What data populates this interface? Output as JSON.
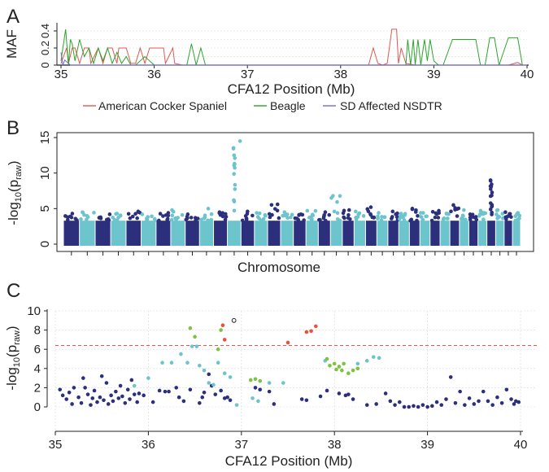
{
  "figure": {
    "panel_a": "A",
    "panel_b": "B",
    "panel_c": "C"
  },
  "colors": {
    "american_cocker": "#e0574f",
    "beagle": "#2aa52a",
    "sd_nsdtr": "#6b6bd8",
    "dark_blue": "#2b2f7c",
    "teal": "#6cc4cc",
    "green_pt": "#7ec241",
    "red_pt": "#e8513f",
    "threshold": "#e0574f",
    "grid": "#d7d7d7"
  },
  "chart_data": [
    {
      "id": "A",
      "type": "line",
      "title": "",
      "xlabel": "CFA12 Position (Mb)",
      "ylabel": "MAF",
      "xlim": [
        35,
        40
      ],
      "ylim": [
        0,
        0.4
      ],
      "xticks": [
        "35",
        "36",
        "37",
        "38",
        "39",
        "40"
      ],
      "yticks": [
        "0",
        "0.2",
        "0.4"
      ],
      "legend": [
        "American Cocker Spaniel",
        "Beagle",
        "SD Affected NSDTR"
      ],
      "series": [
        {
          "name": "American Cocker Spaniel",
          "x": [
            35.0,
            35.06,
            35.08,
            35.12,
            35.15,
            35.2,
            35.25,
            35.3,
            35.32,
            35.4,
            35.45,
            35.5,
            35.55,
            35.6,
            35.62,
            35.7,
            35.75,
            35.8,
            35.85,
            35.9,
            35.95,
            36.0,
            36.05,
            36.1,
            36.12,
            36.2,
            36.22,
            36.3,
            36.4,
            36.6,
            37.0,
            37.5,
            38.0,
            38.3,
            38.35,
            38.4,
            38.45,
            38.5,
            38.55,
            38.6,
            38.62,
            38.65,
            38.7,
            38.8,
            39.0,
            39.5,
            39.8,
            39.9,
            39.95,
            40.0
          ],
          "y": [
            0.02,
            0.2,
            0.02,
            0.2,
            0.2,
            0.02,
            0.2,
            0.2,
            0.02,
            0.2,
            0.02,
            0.2,
            0.2,
            0.02,
            0.2,
            0.2,
            0.02,
            0.02,
            0.2,
            0.02,
            0.2,
            0.2,
            0.2,
            0.2,
            0.02,
            0.2,
            0.02,
            0.0,
            0.0,
            0.0,
            0.0,
            0.0,
            0.0,
            0.0,
            0.2,
            0.02,
            0.0,
            0.02,
            0.42,
            0.42,
            0.02,
            0.2,
            0.02,
            0.0,
            0.0,
            0.0,
            0.0,
            0.03,
            0.0,
            0.0
          ]
        },
        {
          "name": "Beagle",
          "x": [
            35.0,
            35.05,
            35.08,
            35.1,
            35.12,
            35.15,
            35.2,
            35.25,
            35.3,
            35.35,
            35.4,
            35.45,
            35.5,
            35.55,
            35.6,
            35.65,
            35.7,
            35.75,
            35.8,
            35.9,
            36.0,
            36.05,
            36.1,
            36.2,
            36.3,
            36.35,
            36.4,
            36.45,
            36.5,
            36.55,
            36.6,
            37.0,
            37.5,
            38.0,
            38.5,
            38.7,
            38.72,
            38.75,
            38.78,
            38.8,
            38.83,
            38.86,
            38.9,
            38.93,
            38.96,
            39.0,
            39.05,
            39.1,
            39.2,
            39.3,
            39.4,
            39.45,
            39.5,
            39.55,
            39.6,
            39.65,
            39.7,
            39.8,
            39.85,
            39.9,
            39.95,
            40.0
          ],
          "y": [
            0.05,
            0.42,
            0.0,
            0.3,
            0.25,
            0.05,
            0.3,
            0.1,
            0.2,
            0.02,
            0.2,
            0.05,
            0.2,
            0.02,
            0.15,
            0.02,
            0.1,
            0.0,
            0.0,
            0.1,
            0.0,
            0.0,
            0.0,
            0.0,
            0.0,
            0.0,
            0.25,
            0.0,
            0.2,
            0.0,
            0.0,
            0.0,
            0.0,
            0.0,
            0.0,
            0.0,
            0.3,
            0.0,
            0.3,
            0.0,
            0.3,
            0.0,
            0.3,
            0.05,
            0.3,
            0.05,
            0.0,
            0.0,
            0.3,
            0.3,
            0.3,
            0.3,
            0.0,
            0.0,
            0.32,
            0.32,
            0.0,
            0.32,
            0.32,
            0.32,
            0.0,
            0.0
          ]
        },
        {
          "name": "SD Affected NSDTR",
          "x": [
            35.0,
            35.02,
            35.04,
            35.1,
            35.5,
            36.0,
            36.5,
            37.0,
            37.5,
            38.0,
            38.5,
            39.0,
            39.5,
            40.0
          ],
          "y": [
            0.15,
            0.0,
            0.06,
            0.0,
            0.0,
            0.0,
            0.0,
            0.0,
            0.0,
            0.0,
            0.0,
            0.0,
            0.0,
            0.0
          ]
        }
      ]
    },
    {
      "id": "B",
      "type": "scatter",
      "title": "",
      "xlabel": "Chromosome",
      "ylabel": "-log10(praw)",
      "ylim": [
        0,
        15
      ],
      "yticks": [
        "0",
        "5",
        "10",
        "15"
      ],
      "chromosomes": 38,
      "chromosome_max": [
        4.3,
        4.5,
        4.2,
        4.3,
        4.6,
        4.2,
        4.4,
        4.8,
        4.2,
        5.0,
        4.5,
        14.5,
        4.6,
        4.4,
        5.6,
        4.5,
        4.2,
        4.7,
        4.5,
        6.8,
        4.8,
        4.6,
        5.2,
        4.4,
        4.6,
        4.3,
        5.0,
        4.4,
        4.7,
        4.3,
        5.5,
        4.8,
        4.2,
        4.7,
        9.0,
        4.8,
        4.5,
        4.4
      ],
      "series": [
        {
          "name": "odd chromosomes",
          "color": "dark_blue"
        },
        {
          "name": "even chromosomes",
          "color": "teal"
        }
      ]
    },
    {
      "id": "C",
      "type": "scatter",
      "title": "",
      "xlabel": "CFA12 Position (Mb)",
      "ylabel": "-log10(praw)",
      "xlim": [
        35,
        40
      ],
      "ylim": [
        0,
        10
      ],
      "xticks": [
        "35",
        "36",
        "37",
        "38",
        "39",
        "40"
      ],
      "yticks": [
        "0",
        "2",
        "4",
        "6",
        "8",
        "10"
      ],
      "threshold": 6.4,
      "series": [
        {
          "name": "dark",
          "points": [
            [
              35.05,
              1.8
            ],
            [
              35.08,
              1.2
            ],
            [
              35.12,
              0.8
            ],
            [
              35.15,
              1.5
            ],
            [
              35.18,
              0.3
            ],
            [
              35.2,
              2.0
            ],
            [
              35.25,
              1.0
            ],
            [
              35.28,
              0.4
            ],
            [
              35.3,
              3.0
            ],
            [
              35.32,
              2.0
            ],
            [
              35.35,
              1.3
            ],
            [
              35.38,
              0.2
            ],
            [
              35.4,
              0.9
            ],
            [
              35.42,
              1.7
            ],
            [
              35.45,
              0.5
            ],
            [
              35.48,
              1.0
            ],
            [
              35.5,
              3.2
            ],
            [
              35.52,
              0.7
            ],
            [
              35.55,
              2.5
            ],
            [
              35.57,
              0.3
            ],
            [
              35.6,
              1.2
            ],
            [
              35.62,
              0.6
            ],
            [
              35.65,
              1.6
            ],
            [
              35.68,
              0.9
            ],
            [
              35.7,
              2.2
            ],
            [
              35.72,
              1.1
            ],
            [
              35.75,
              0.4
            ],
            [
              35.78,
              1.8
            ],
            [
              35.8,
              0.8
            ],
            [
              35.82,
              2.8
            ],
            [
              35.85,
              1.3
            ],
            [
              35.88,
              0.5
            ],
            [
              35.9,
              1.4
            ],
            [
              35.95,
              1.2
            ],
            [
              36.05,
              0.5
            ],
            [
              36.12,
              1.7
            ],
            [
              36.18,
              1.6
            ],
            [
              36.22,
              1.6
            ],
            [
              36.3,
              2.0
            ],
            [
              36.33,
              1.0
            ],
            [
              36.38,
              0.6
            ],
            [
              36.45,
              1.8
            ],
            [
              36.55,
              0.4
            ],
            [
              36.58,
              1.0
            ],
            [
              36.6,
              1.5
            ],
            [
              36.65,
              3.4
            ],
            [
              36.68,
              2.2
            ],
            [
              36.72,
              1.3
            ],
            [
              36.78,
              1.7
            ],
            [
              36.82,
              0.9
            ],
            [
              36.85,
              1.0
            ],
            [
              36.88,
              0.7
            ],
            [
              37.15,
              2.0
            ],
            [
              37.2,
              1.8
            ],
            [
              37.3,
              1.6
            ],
            [
              37.35,
              0.3
            ],
            [
              37.65,
              0.8
            ],
            [
              37.7,
              0.7
            ],
            [
              37.85,
              1.1
            ],
            [
              37.92,
              1.7
            ],
            [
              38.05,
              1.4
            ],
            [
              38.12,
              1.2
            ],
            [
              38.15,
              1.3
            ],
            [
              38.2,
              0.8
            ],
            [
              38.35,
              0.2
            ],
            [
              38.45,
              0.3
            ],
            [
              38.55,
              1.4
            ],
            [
              38.6,
              0.6
            ],
            [
              38.65,
              0.2
            ],
            [
              38.7,
              0.5
            ],
            [
              38.75,
              0.0
            ],
            [
              38.8,
              0.0
            ],
            [
              38.85,
              0.1
            ],
            [
              38.9,
              0.0
            ],
            [
              38.95,
              0.2
            ],
            [
              39.0,
              0.0
            ],
            [
              39.05,
              0.1
            ],
            [
              39.1,
              0.5
            ],
            [
              39.15,
              0.2
            ],
            [
              39.2,
              0.8
            ],
            [
              39.25,
              3.1
            ],
            [
              39.3,
              0.4
            ],
            [
              39.35,
              1.6
            ],
            [
              39.4,
              0.2
            ],
            [
              39.45,
              0.9
            ],
            [
              39.5,
              0.3
            ],
            [
              39.55,
              0.6
            ],
            [
              39.6,
              1.6
            ],
            [
              39.65,
              0.6
            ],
            [
              39.7,
              0.2
            ],
            [
              39.75,
              1.0
            ],
            [
              39.8,
              0.4
            ],
            [
              39.85,
              1.8
            ],
            [
              39.9,
              0.8
            ],
            [
              39.93,
              0.3
            ],
            [
              39.95,
              0.6
            ],
            [
              39.98,
              0.5
            ]
          ]
        },
        {
          "name": "teal",
          "points": [
            [
              35.85,
              2.2
            ],
            [
              36.0,
              3.0
            ],
            [
              36.15,
              4.6
            ],
            [
              36.25,
              4.6
            ],
            [
              36.35,
              5.5
            ],
            [
              36.42,
              4.6
            ],
            [
              36.47,
              6.3
            ],
            [
              36.52,
              6.3
            ],
            [
              36.55,
              4.3
            ],
            [
              36.6,
              3.8
            ],
            [
              36.65,
              2.5
            ],
            [
              36.7,
              2.3
            ],
            [
              36.75,
              4.6
            ],
            [
              36.82,
              3.5
            ],
            [
              36.88,
              3.1
            ],
            [
              36.95,
              0.2
            ],
            [
              37.12,
              0.9
            ],
            [
              37.18,
              0.6
            ],
            [
              37.3,
              2.5
            ],
            [
              37.45,
              2.5
            ],
            [
              37.9,
              4.8
            ],
            [
              38.25,
              4.5
            ],
            [
              38.35,
              4.8
            ],
            [
              38.42,
              5.2
            ],
            [
              38.48,
              5.1
            ]
          ]
        },
        {
          "name": "green",
          "points": [
            [
              36.45,
              8.2
            ],
            [
              36.5,
              7.3
            ],
            [
              36.75,
              6.0
            ],
            [
              36.78,
              8.0
            ],
            [
              37.1,
              2.8
            ],
            [
              37.15,
              2.9
            ],
            [
              37.2,
              2.7
            ],
            [
              37.92,
              5.0
            ],
            [
              37.95,
              4.3
            ],
            [
              38.0,
              4.5
            ],
            [
              38.02,
              3.9
            ],
            [
              38.05,
              4.2
            ],
            [
              38.08,
              3.8
            ],
            [
              38.1,
              4.5
            ],
            [
              38.15,
              3.5
            ],
            [
              38.2,
              3.8
            ],
            [
              38.25,
              4.0
            ]
          ]
        },
        {
          "name": "red",
          "points": [
            [
              36.8,
              8.5
            ],
            [
              36.82,
              7.0
            ],
            [
              37.5,
              6.7
            ],
            [
              37.7,
              7.8
            ],
            [
              37.75,
              7.9
            ],
            [
              37.8,
              8.4
            ]
          ]
        },
        {
          "name": "open",
          "points": [
            [
              36.92,
              9.0
            ]
          ]
        }
      ]
    }
  ]
}
